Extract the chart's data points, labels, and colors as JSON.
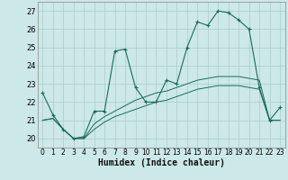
{
  "title": "",
  "xlabel": "Humidex (Indice chaleur)",
  "bg_color": "#cce8e8",
  "grid_color": "#aacccc",
  "line_color": "#1a6b5a",
  "xlim": [
    -0.5,
    23.5
  ],
  "ylim": [
    19.5,
    27.5
  ],
  "yticks": [
    20,
    21,
    22,
    23,
    24,
    25,
    26,
    27
  ],
  "xticks": [
    0,
    1,
    2,
    3,
    4,
    5,
    6,
    7,
    8,
    9,
    10,
    11,
    12,
    13,
    14,
    15,
    16,
    17,
    18,
    19,
    20,
    21,
    22,
    23
  ],
  "series": [
    {
      "x": [
        0,
        1,
        2,
        3,
        4,
        5,
        6,
        7,
        8,
        9,
        10,
        11,
        12,
        13,
        14,
        15,
        16,
        17,
        18,
        19,
        20,
        21,
        22,
        23
      ],
      "y": [
        22.5,
        21.3,
        20.5,
        20.0,
        20.1,
        21.5,
        21.5,
        24.8,
        24.9,
        22.8,
        22.0,
        22.0,
        23.2,
        23.0,
        25.0,
        26.4,
        26.2,
        27.0,
        26.9,
        26.5,
        26.0,
        22.8,
        21.0,
        21.7
      ],
      "has_markers": true
    },
    {
      "x": [
        0,
        1,
        2,
        3,
        4,
        5,
        6,
        7,
        8,
        9,
        10,
        11,
        12,
        13,
        14,
        15,
        16,
        17,
        18,
        19,
        20,
        21,
        22,
        23
      ],
      "y": [
        21.0,
        21.1,
        20.5,
        20.0,
        20.0,
        20.8,
        21.2,
        21.5,
        21.8,
        22.1,
        22.3,
        22.5,
        22.6,
        22.8,
        23.0,
        23.2,
        23.3,
        23.4,
        23.4,
        23.4,
        23.3,
        23.2,
        21.0,
        21.0
      ],
      "has_markers": false
    },
    {
      "x": [
        0,
        1,
        2,
        3,
        4,
        5,
        6,
        7,
        8,
        9,
        10,
        11,
        12,
        13,
        14,
        15,
        16,
        17,
        18,
        19,
        20,
        21,
        22,
        23
      ],
      "y": [
        21.0,
        21.1,
        20.5,
        20.0,
        20.0,
        20.5,
        20.9,
        21.2,
        21.4,
        21.6,
        21.8,
        22.0,
        22.1,
        22.3,
        22.5,
        22.7,
        22.8,
        22.9,
        22.9,
        22.9,
        22.8,
        22.7,
        21.0,
        21.0
      ],
      "has_markers": false
    }
  ]
}
